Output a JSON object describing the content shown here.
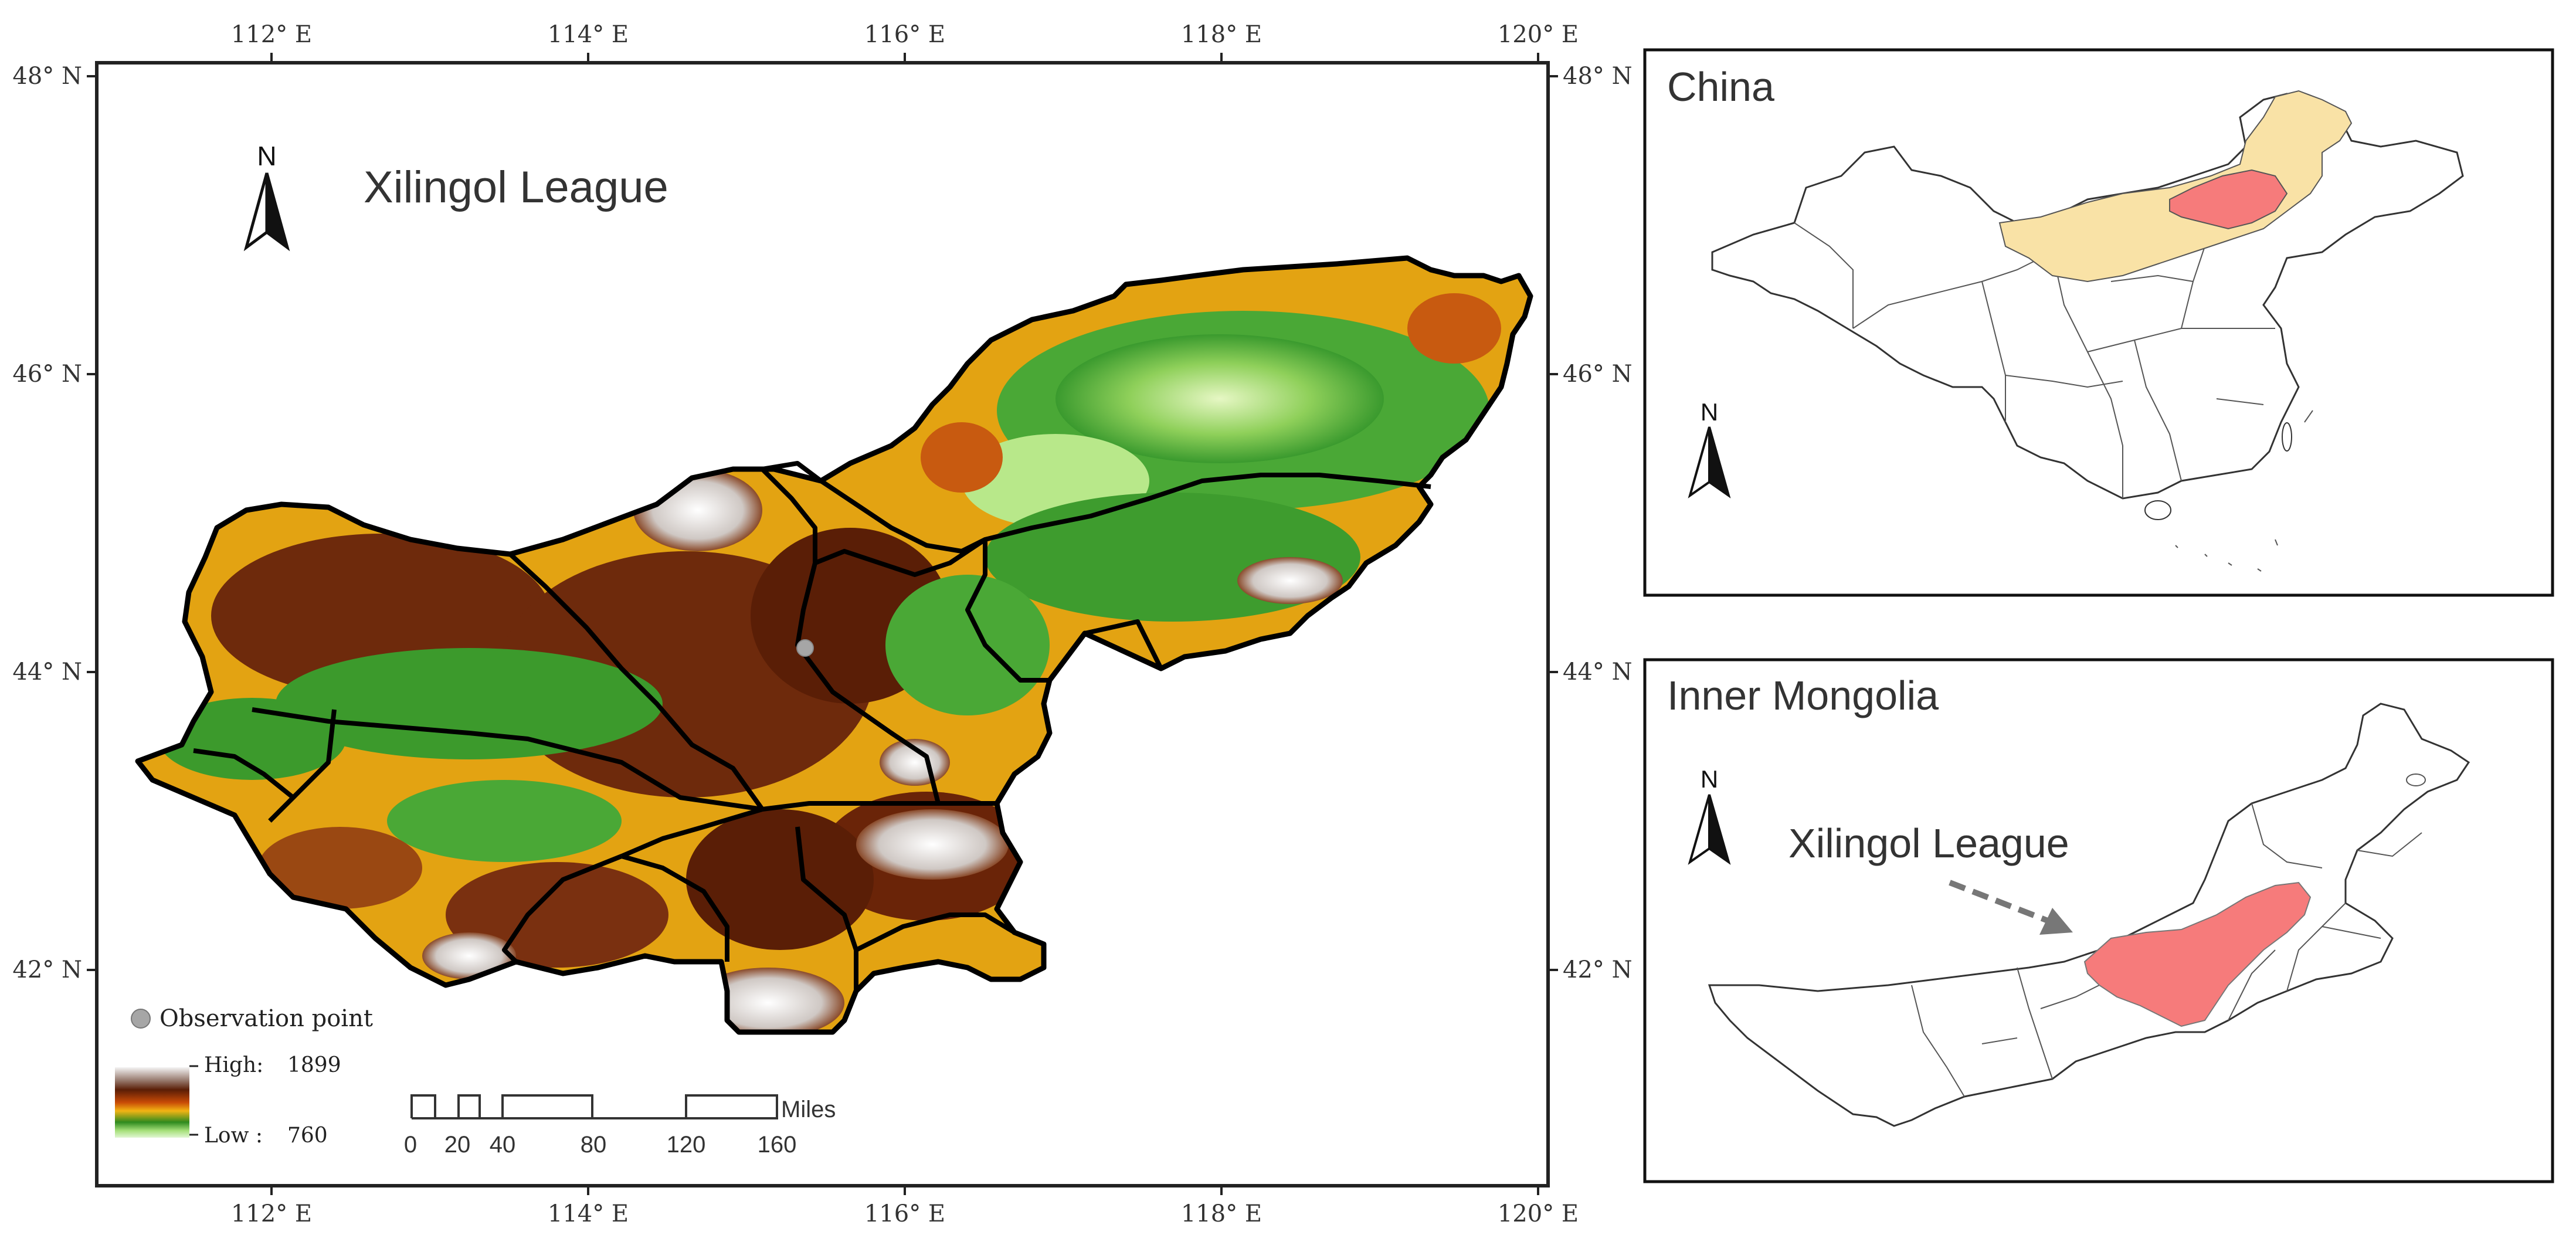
{
  "main_map": {
    "title": "Xilingol League",
    "north_label": "N",
    "top_ticks": [
      "112° E",
      "114° E",
      "116° E",
      "118° E",
      "120° E"
    ],
    "bottom_ticks": [
      "112° E",
      "114° E",
      "116° E",
      "118° E",
      "120° E"
    ],
    "left_ticks": [
      "48° N",
      "46° N",
      "44° N",
      "42° N"
    ],
    "right_ticks": [
      "48° N",
      "46° N",
      "44° N",
      "42° N"
    ],
    "legend": {
      "observation_label": "Observation point",
      "high_label": "High:",
      "high_value": "1899",
      "low_label": "Low :",
      "low_value": "760"
    },
    "scalebar": {
      "ticks": [
        "0",
        "20",
        "40",
        "80",
        "120",
        "160"
      ],
      "unit": "Miles"
    }
  },
  "inset_china": {
    "title": "China",
    "north_label": "N"
  },
  "inset_inner_mongolia": {
    "title": "Inner Mongolia",
    "north_label": "N",
    "callout": "Xilingol League"
  },
  "colors": {
    "elevation_high": "#f2f2f2",
    "elevation_brown": "#6b2a0a",
    "elevation_orange": "#e8a010",
    "elevation_green": "#3c9a2c",
    "elevation_low": "#d8f2c0",
    "inner_mongolia_fill": "#f9e2a6",
    "xilingol_fill": "#f67b7b",
    "observation_point": "#a6a6a6"
  }
}
